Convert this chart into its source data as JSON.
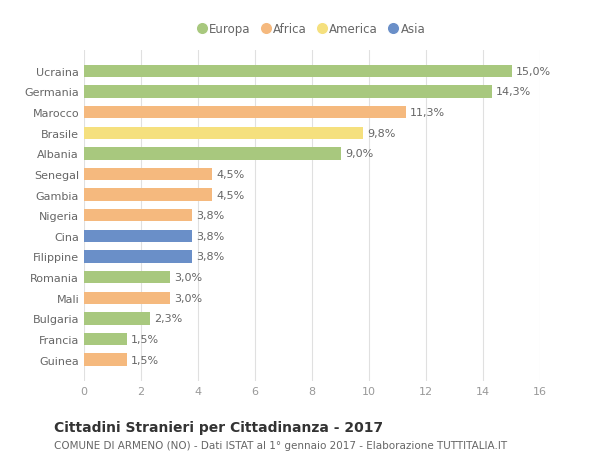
{
  "categories": [
    "Guinea",
    "Francia",
    "Bulgaria",
    "Mali",
    "Romania",
    "Filippine",
    "Cina",
    "Nigeria",
    "Gambia",
    "Senegal",
    "Albania",
    "Brasile",
    "Marocco",
    "Germania",
    "Ucraina"
  ],
  "values": [
    1.5,
    1.5,
    2.3,
    3.0,
    3.0,
    3.8,
    3.8,
    3.8,
    4.5,
    4.5,
    9.0,
    9.8,
    11.3,
    14.3,
    15.0
  ],
  "continents": [
    "Africa",
    "Europa",
    "Europa",
    "Africa",
    "Europa",
    "Asia",
    "Asia",
    "Africa",
    "Africa",
    "Africa",
    "Europa",
    "America",
    "Africa",
    "Europa",
    "Europa"
  ],
  "colors": {
    "Europa": "#a8c87e",
    "Africa": "#f5b97e",
    "America": "#f5e07e",
    "Asia": "#6a8fc8"
  },
  "legend_order": [
    "Europa",
    "Africa",
    "America",
    "Asia"
  ],
  "xlim": [
    0,
    16
  ],
  "xticks": [
    0,
    2,
    4,
    6,
    8,
    10,
    12,
    14,
    16
  ],
  "title": "Cittadini Stranieri per Cittadinanza - 2017",
  "subtitle": "COMUNE DI ARMENO (NO) - Dati ISTAT al 1° gennaio 2017 - Elaborazione TUTTITALIA.IT",
  "bar_height": 0.6,
  "background_color": "#ffffff",
  "grid_color": "#e0e0e0",
  "label_fontsize": 8,
  "value_fontsize": 8,
  "title_fontsize": 10,
  "subtitle_fontsize": 7.5,
  "legend_fontsize": 8.5
}
